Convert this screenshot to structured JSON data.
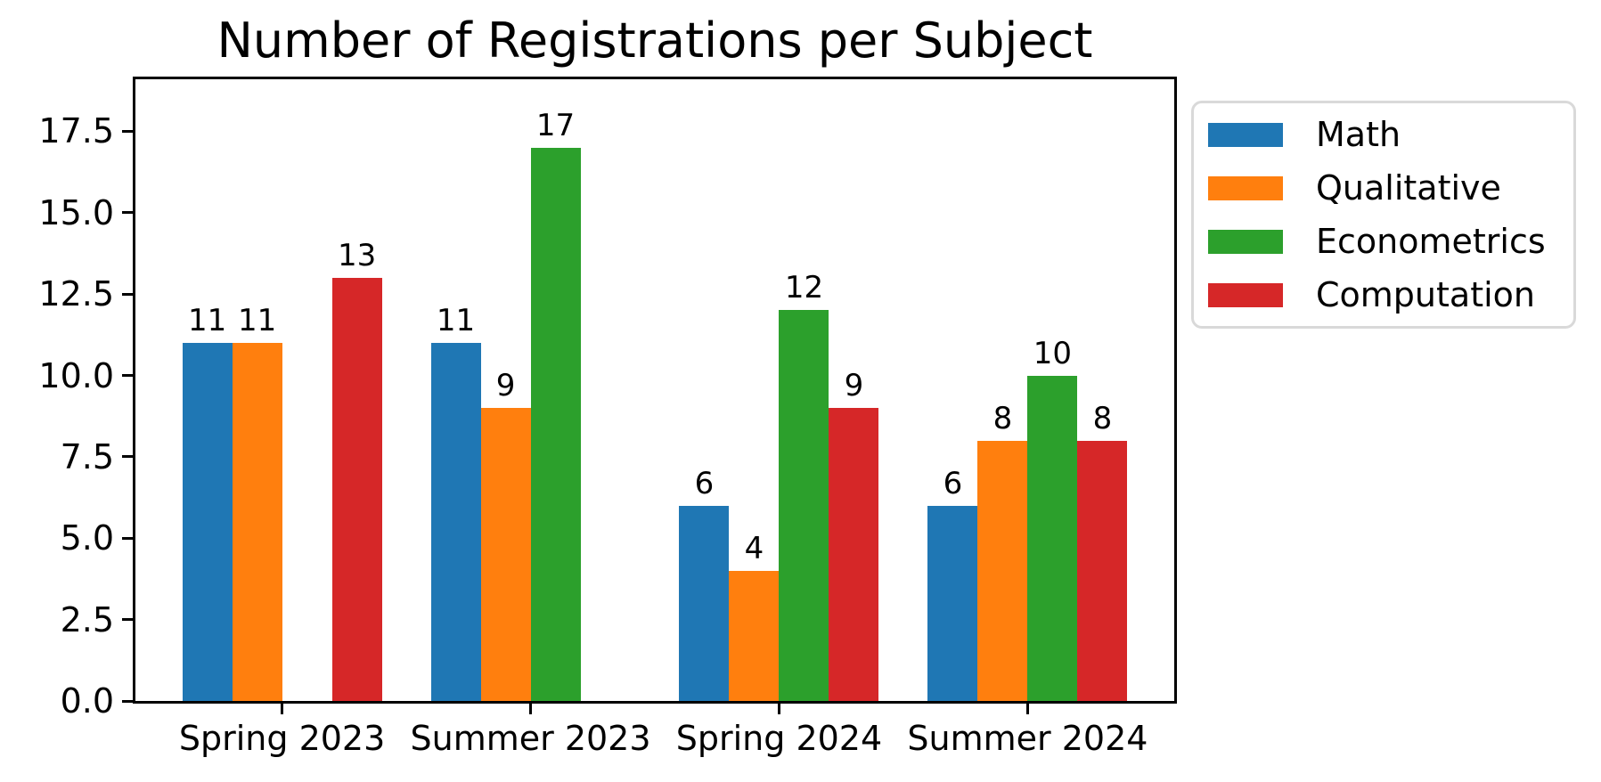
{
  "chart_data": {
    "type": "bar",
    "title": "Number of Registrations per Subject",
    "xlabel": "",
    "ylabel": "",
    "categories": [
      "Spring 2023",
      "Summer 2023",
      "Spring 2024",
      "Summer 2024"
    ],
    "series": [
      {
        "name": "Math",
        "color": "#1f77b4",
        "values": [
          11,
          11,
          6,
          6
        ]
      },
      {
        "name": "Qualitative",
        "color": "#ff7f0e",
        "values": [
          11,
          9,
          4,
          8
        ]
      },
      {
        "name": "Econometrics",
        "color": "#2ca02c",
        "values": [
          null,
          17,
          12,
          10
        ]
      },
      {
        "name": "Computation",
        "color": "#d62728",
        "values": [
          13,
          null,
          9,
          8
        ]
      }
    ],
    "bar_value_labels": true,
    "ylim": [
      0,
      19.1
    ],
    "yticks": [
      {
        "value": 0,
        "label": "0.0"
      },
      {
        "value": 2.5,
        "label": "2.5"
      },
      {
        "value": 5,
        "label": "5.0"
      },
      {
        "value": 7.5,
        "label": "7.5"
      },
      {
        "value": 10,
        "label": "10.0"
      },
      {
        "value": 12.5,
        "label": "12.5"
      },
      {
        "value": 15,
        "label": "15.0"
      },
      {
        "value": 17.5,
        "label": "17.5"
      }
    ],
    "grid": false,
    "legend_position": "outside-upper-right",
    "axis_color": "#000000",
    "legend_border_color": "#d9d9d9"
  }
}
